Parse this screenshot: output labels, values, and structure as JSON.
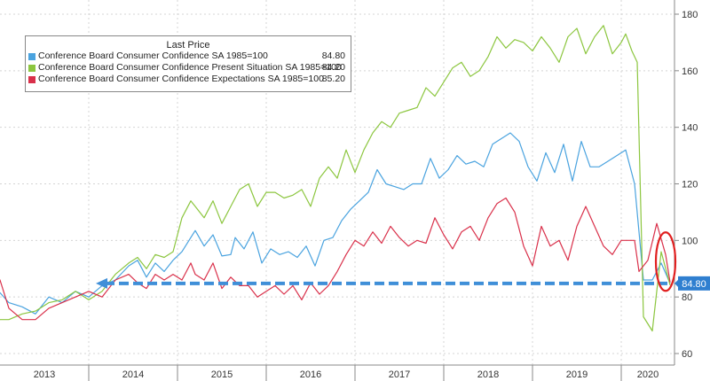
{
  "chart_data": {
    "type": "line",
    "legend": {
      "title": "Last Price",
      "placement": "top-left",
      "entries": [
        {
          "label": "Conference Board Consumer Confidence SA 1985=100",
          "value": "84.80",
          "color": "#4aa3df"
        },
        {
          "label": "Conference Board Consumer Confidence Present Situation SA 1985=100",
          "value": "84.20",
          "color": "#8cc63f"
        },
        {
          "label": "Conference Board Consumer Confidence Expectations SA 1985=100",
          "value": "85.20",
          "color": "#d9304a"
        }
      ]
    },
    "y_axis": {
      "side": "right",
      "range": [
        60,
        180
      ],
      "ticks": [
        60,
        80,
        100,
        120,
        140,
        160,
        180
      ]
    },
    "x_axis": {
      "range": [
        2013.0,
        2020.6
      ],
      "years": [
        "2013",
        "2014",
        "2015",
        "2016",
        "2017",
        "2018",
        "2019",
        "2020"
      ]
    },
    "last_value_label": "84.80",
    "last_value_level": 84.8,
    "series": [
      {
        "name": "Conference Board Consumer Confidence SA 1985=100",
        "color": "#4aa3df",
        "points": [
          [
            2012.9,
            80
          ],
          [
            2013.0,
            81.5
          ],
          [
            2013.1,
            78
          ],
          [
            2013.25,
            76.5
          ],
          [
            2013.4,
            74
          ],
          [
            2013.55,
            80
          ],
          [
            2013.7,
            78
          ],
          [
            2013.85,
            82
          ],
          [
            2014.0,
            80
          ],
          [
            2014.15,
            84
          ],
          [
            2014.3,
            86
          ],
          [
            2014.45,
            91
          ],
          [
            2014.55,
            93
          ],
          [
            2014.65,
            87
          ],
          [
            2014.75,
            92
          ],
          [
            2014.85,
            89
          ],
          [
            2014.95,
            93
          ],
          [
            2015.05,
            96
          ],
          [
            2015.15,
            101
          ],
          [
            2015.2,
            103.5
          ],
          [
            2015.3,
            98
          ],
          [
            2015.4,
            102
          ],
          [
            2015.5,
            94.5
          ],
          [
            2015.6,
            95
          ],
          [
            2015.65,
            101
          ],
          [
            2015.75,
            97
          ],
          [
            2015.85,
            103
          ],
          [
            2015.95,
            92
          ],
          [
            2016.05,
            97
          ],
          [
            2016.15,
            95
          ],
          [
            2016.25,
            96
          ],
          [
            2016.35,
            94
          ],
          [
            2016.45,
            98
          ],
          [
            2016.55,
            91
          ],
          [
            2016.65,
            100
          ],
          [
            2016.75,
            101
          ],
          [
            2016.85,
            107
          ],
          [
            2016.95,
            111
          ],
          [
            2017.05,
            114
          ],
          [
            2017.15,
            117
          ],
          [
            2017.25,
            125
          ],
          [
            2017.35,
            120
          ],
          [
            2017.45,
            119
          ],
          [
            2017.55,
            118
          ],
          [
            2017.65,
            120
          ],
          [
            2017.75,
            120
          ],
          [
            2017.85,
            129
          ],
          [
            2017.95,
            122
          ],
          [
            2018.05,
            125
          ],
          [
            2018.15,
            130
          ],
          [
            2018.25,
            127
          ],
          [
            2018.35,
            128
          ],
          [
            2018.45,
            126
          ],
          [
            2018.55,
            134
          ],
          [
            2018.65,
            136
          ],
          [
            2018.75,
            138
          ],
          [
            2018.85,
            135
          ],
          [
            2018.95,
            126
          ],
          [
            2019.05,
            121
          ],
          [
            2019.15,
            131
          ],
          [
            2019.25,
            124
          ],
          [
            2019.35,
            134
          ],
          [
            2019.45,
            121
          ],
          [
            2019.55,
            135
          ],
          [
            2019.65,
            126
          ],
          [
            2019.75,
            126
          ],
          [
            2019.85,
            128
          ],
          [
            2019.95,
            130
          ],
          [
            2020.05,
            132
          ],
          [
            2020.15,
            120
          ],
          [
            2020.25,
            86
          ],
          [
            2020.35,
            86
          ],
          [
            2020.45,
            92
          ],
          [
            2020.55,
            84.8
          ]
        ]
      },
      {
        "name": "Conference Board Consumer Confidence Present Situation SA 1985=100",
        "color": "#8cc63f",
        "points": [
          [
            2012.9,
            71
          ],
          [
            2013.0,
            72
          ],
          [
            2013.1,
            72
          ],
          [
            2013.25,
            74
          ],
          [
            2013.4,
            75
          ],
          [
            2013.55,
            78
          ],
          [
            2013.7,
            79
          ],
          [
            2013.85,
            82
          ],
          [
            2014.0,
            79
          ],
          [
            2014.15,
            82
          ],
          [
            2014.3,
            88
          ],
          [
            2014.45,
            92
          ],
          [
            2014.55,
            94
          ],
          [
            2014.65,
            90
          ],
          [
            2014.75,
            95
          ],
          [
            2014.85,
            94
          ],
          [
            2014.95,
            96
          ],
          [
            2015.05,
            108
          ],
          [
            2015.15,
            114
          ],
          [
            2015.2,
            112
          ],
          [
            2015.3,
            108
          ],
          [
            2015.4,
            114
          ],
          [
            2015.5,
            106
          ],
          [
            2015.6,
            112
          ],
          [
            2015.7,
            118
          ],
          [
            2015.8,
            120
          ],
          [
            2015.9,
            112
          ],
          [
            2016.0,
            117
          ],
          [
            2016.1,
            117
          ],
          [
            2016.2,
            115
          ],
          [
            2016.3,
            116
          ],
          [
            2016.4,
            118
          ],
          [
            2016.5,
            112
          ],
          [
            2016.6,
            122
          ],
          [
            2016.7,
            126
          ],
          [
            2016.8,
            122
          ],
          [
            2016.9,
            132
          ],
          [
            2017.0,
            124
          ],
          [
            2017.1,
            132
          ],
          [
            2017.2,
            138
          ],
          [
            2017.3,
            142
          ],
          [
            2017.4,
            140
          ],
          [
            2017.5,
            145
          ],
          [
            2017.6,
            146
          ],
          [
            2017.7,
            147
          ],
          [
            2017.8,
            154
          ],
          [
            2017.9,
            151
          ],
          [
            2018.0,
            156
          ],
          [
            2018.1,
            161
          ],
          [
            2018.2,
            163
          ],
          [
            2018.3,
            158
          ],
          [
            2018.4,
            160
          ],
          [
            2018.5,
            165
          ],
          [
            2018.6,
            172
          ],
          [
            2018.7,
            168
          ],
          [
            2018.8,
            171
          ],
          [
            2018.9,
            170
          ],
          [
            2019.0,
            167
          ],
          [
            2019.1,
            172
          ],
          [
            2019.2,
            168
          ],
          [
            2019.3,
            163
          ],
          [
            2019.4,
            172
          ],
          [
            2019.5,
            175
          ],
          [
            2019.6,
            166
          ],
          [
            2019.7,
            172
          ],
          [
            2019.8,
            176
          ],
          [
            2019.9,
            166
          ],
          [
            2020.0,
            170
          ],
          [
            2020.05,
            173
          ],
          [
            2020.12,
            167
          ],
          [
            2020.18,
            163
          ],
          [
            2020.25,
            73
          ],
          [
            2020.35,
            68
          ],
          [
            2020.45,
            96
          ],
          [
            2020.55,
            84.2
          ]
        ]
      },
      {
        "name": "Conference Board Consumer Confidence Expectations SA 1985=100",
        "color": "#d9304a",
        "points": [
          [
            2012.9,
            89
          ],
          [
            2013.0,
            86
          ],
          [
            2013.1,
            76
          ],
          [
            2013.25,
            72
          ],
          [
            2013.4,
            72
          ],
          [
            2013.55,
            76
          ],
          [
            2013.7,
            78
          ],
          [
            2013.85,
            80
          ],
          [
            2014.0,
            82
          ],
          [
            2014.15,
            80
          ],
          [
            2014.3,
            86
          ],
          [
            2014.45,
            88
          ],
          [
            2014.55,
            85
          ],
          [
            2014.65,
            83
          ],
          [
            2014.75,
            88
          ],
          [
            2014.85,
            86
          ],
          [
            2014.95,
            88
          ],
          [
            2015.05,
            86
          ],
          [
            2015.15,
            92
          ],
          [
            2015.2,
            88
          ],
          [
            2015.3,
            86
          ],
          [
            2015.4,
            92
          ],
          [
            2015.5,
            83
          ],
          [
            2015.6,
            87
          ],
          [
            2015.7,
            84
          ],
          [
            2015.8,
            84
          ],
          [
            2015.9,
            80
          ],
          [
            2016.0,
            82
          ],
          [
            2016.1,
            84
          ],
          [
            2016.2,
            81
          ],
          [
            2016.3,
            84
          ],
          [
            2016.4,
            79
          ],
          [
            2016.5,
            85
          ],
          [
            2016.6,
            81
          ],
          [
            2016.7,
            84
          ],
          [
            2016.8,
            89
          ],
          [
            2016.9,
            95
          ],
          [
            2017.0,
            100
          ],
          [
            2017.1,
            98
          ],
          [
            2017.2,
            103
          ],
          [
            2017.3,
            99
          ],
          [
            2017.4,
            105
          ],
          [
            2017.5,
            101
          ],
          [
            2017.6,
            98
          ],
          [
            2017.7,
            100
          ],
          [
            2017.8,
            99
          ],
          [
            2017.9,
            108
          ],
          [
            2018.0,
            102
          ],
          [
            2018.1,
            97
          ],
          [
            2018.2,
            103
          ],
          [
            2018.3,
            105
          ],
          [
            2018.4,
            100
          ],
          [
            2018.5,
            108
          ],
          [
            2018.6,
            113
          ],
          [
            2018.7,
            115
          ],
          [
            2018.8,
            110
          ],
          [
            2018.9,
            98
          ],
          [
            2019.0,
            91
          ],
          [
            2019.1,
            105
          ],
          [
            2019.2,
            98
          ],
          [
            2019.3,
            100
          ],
          [
            2019.4,
            93
          ],
          [
            2019.5,
            105
          ],
          [
            2019.6,
            112
          ],
          [
            2019.7,
            105
          ],
          [
            2019.8,
            98
          ],
          [
            2019.9,
            95
          ],
          [
            2020.0,
            100
          ],
          [
            2020.05,
            100
          ],
          [
            2020.15,
            100
          ],
          [
            2020.2,
            89
          ],
          [
            2020.3,
            93
          ],
          [
            2020.4,
            106
          ],
          [
            2020.5,
            95
          ],
          [
            2020.55,
            85.2
          ]
        ]
      }
    ]
  }
}
